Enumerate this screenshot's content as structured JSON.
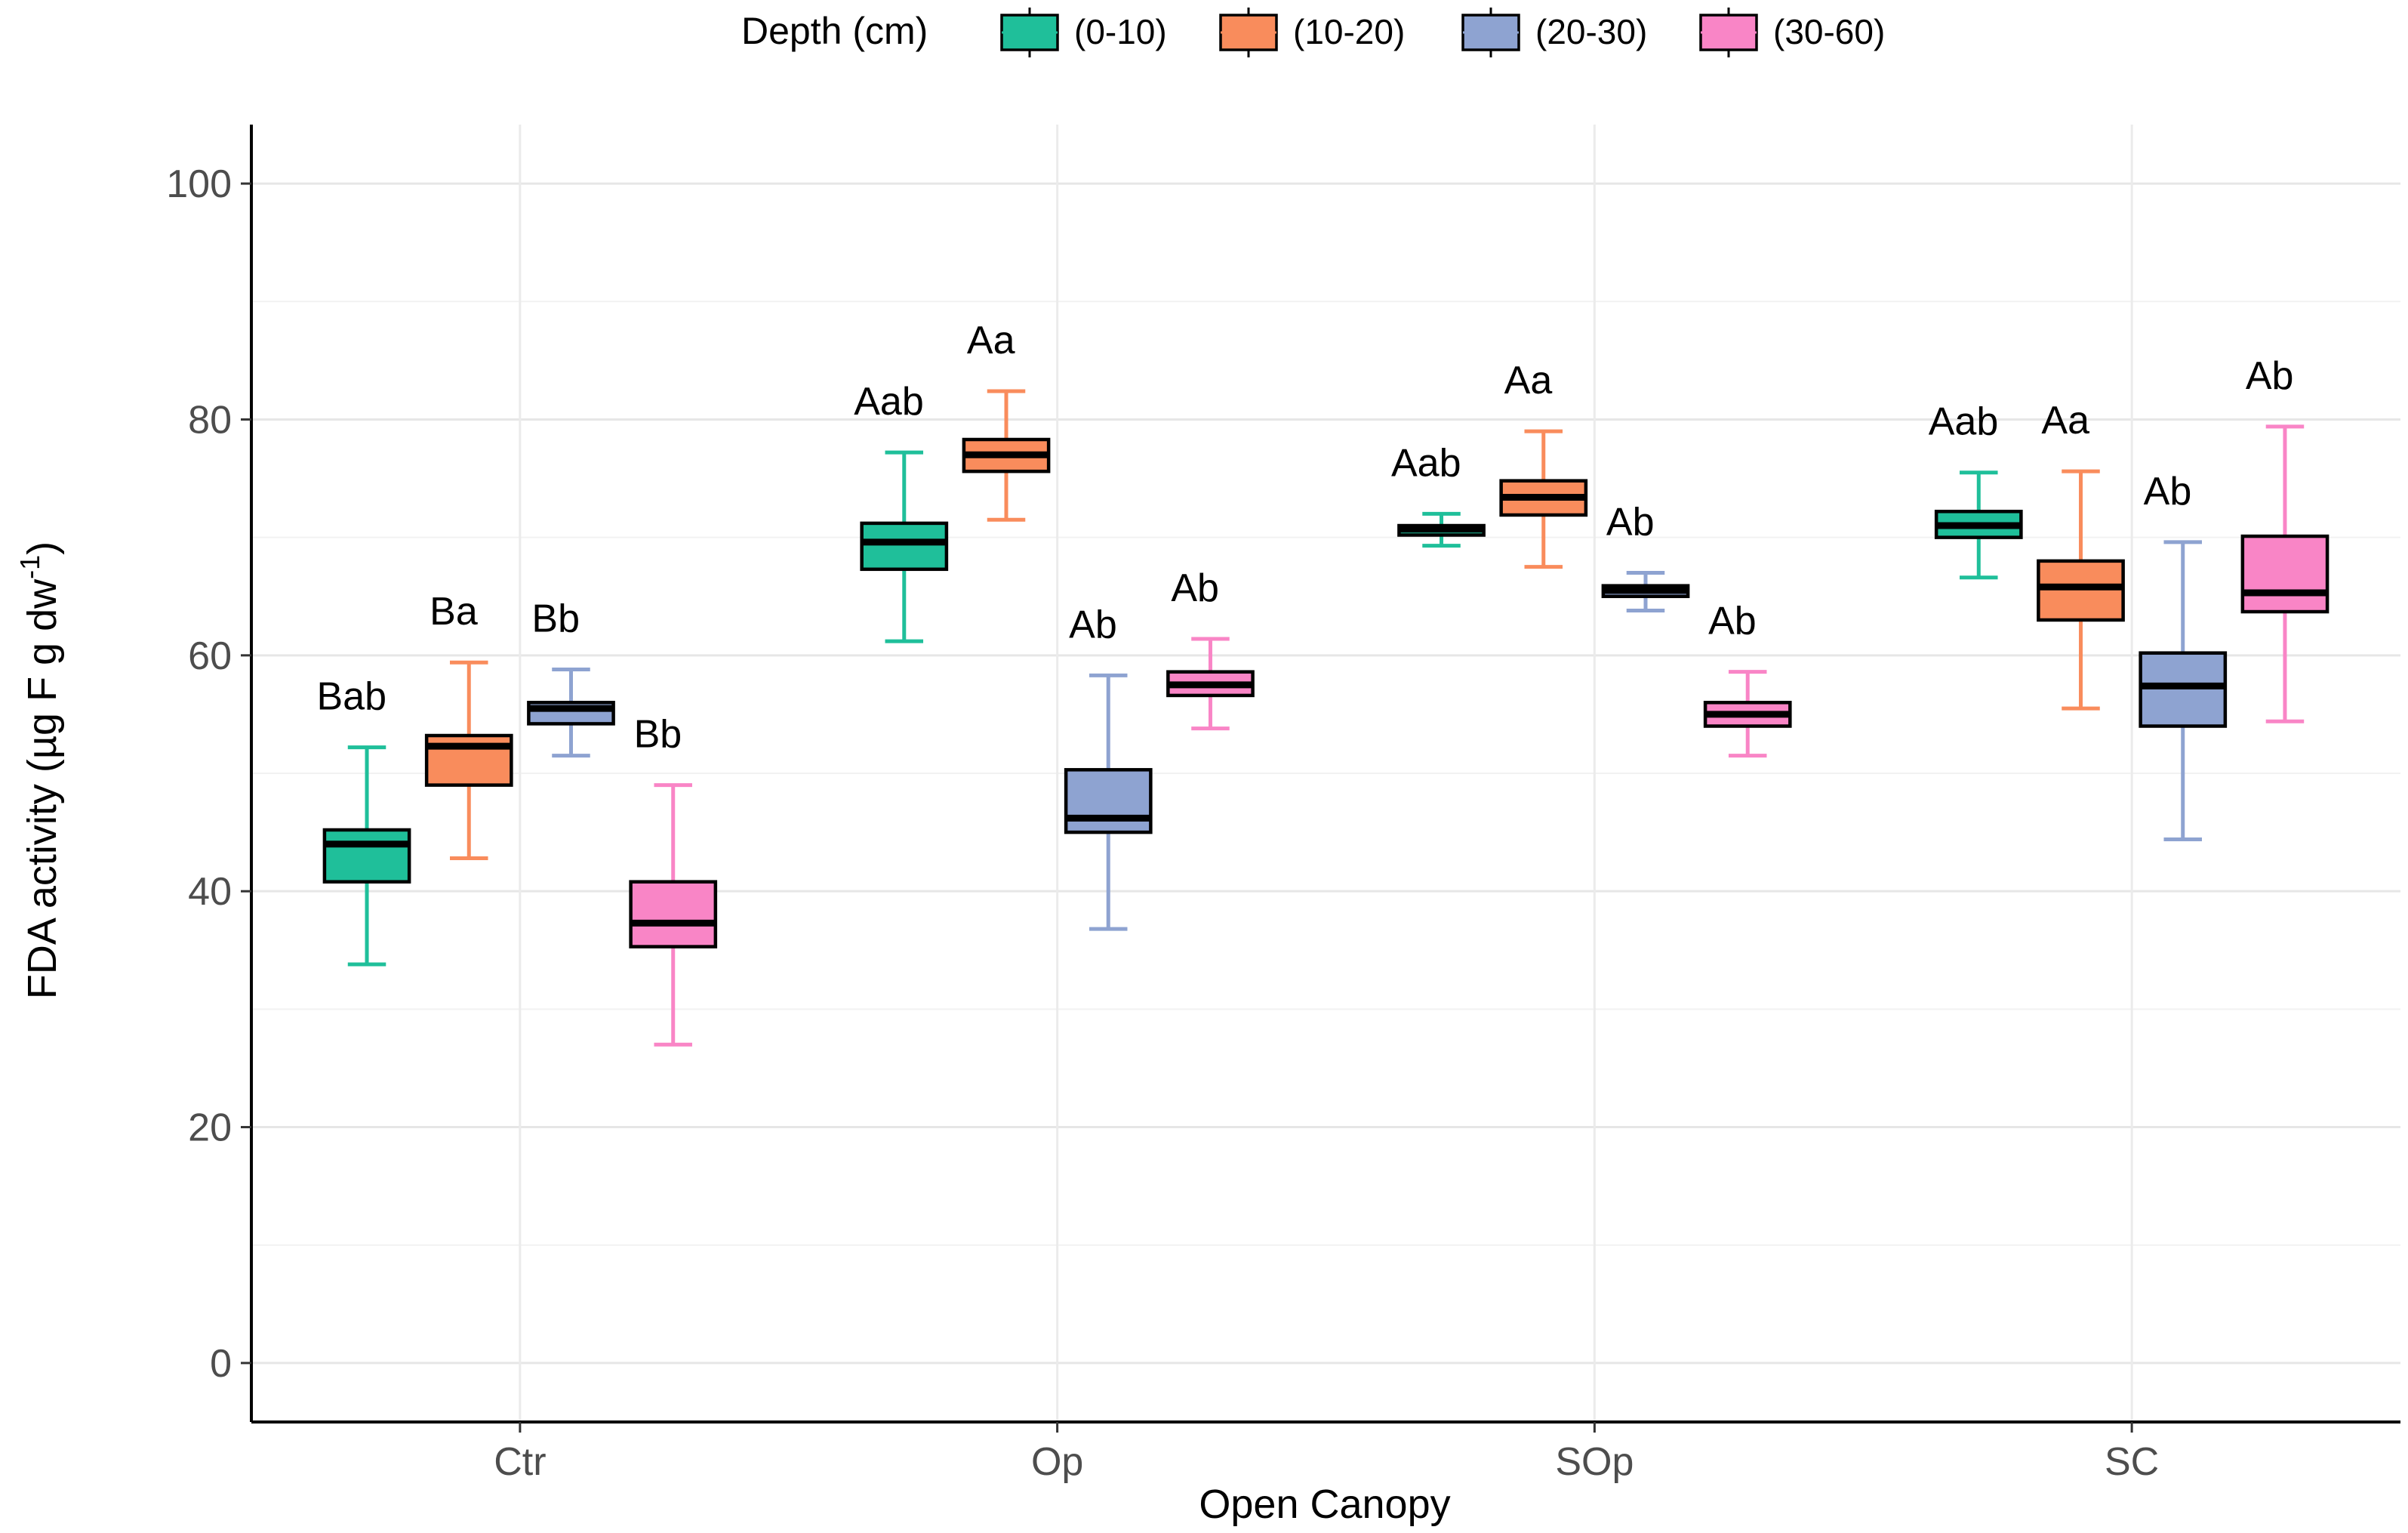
{
  "chart_data": {
    "type": "box",
    "title": "",
    "xlabel": "Open Canopy",
    "ylabel": "FDA activity (µg F g dw",
    "ylabel_superscript": "-1",
    "ylabel_close": ")",
    "ylim": [
      -5,
      105
    ],
    "yticks": [
      0,
      20,
      40,
      60,
      80,
      100
    ],
    "grid": true,
    "legend": {
      "position": "top",
      "title": "Depth (cm)"
    },
    "categories": [
      "Ctr",
      "Op",
      "SOp",
      "SC"
    ],
    "series": [
      {
        "name": "(0-10)",
        "color": "#1fbf9a",
        "boxes": [
          {
            "min": 33.8,
            "q1": 40.8,
            "median": 44.0,
            "q3": 45.2,
            "max": 52.2,
            "label": "Bab"
          },
          {
            "min": 61.2,
            "q1": 67.3,
            "median": 69.6,
            "q3": 71.2,
            "max": 77.2,
            "label": "Aab"
          },
          {
            "min": 69.3,
            "q1": 70.2,
            "median": 70.7,
            "q3": 71.0,
            "max": 72.0,
            "label": "Aab"
          },
          {
            "min": 66.6,
            "q1": 70.0,
            "median": 71.0,
            "q3": 72.2,
            "max": 75.5,
            "label": "Aab"
          }
        ]
      },
      {
        "name": "(10-20)",
        "color": "#f98c5c",
        "boxes": [
          {
            "min": 42.8,
            "q1": 49.0,
            "median": 52.3,
            "q3": 53.2,
            "max": 59.4,
            "label": "Ba"
          },
          {
            "min": 71.5,
            "q1": 75.6,
            "median": 77.0,
            "q3": 78.3,
            "max": 82.4,
            "label": "Aa"
          },
          {
            "min": 67.5,
            "q1": 71.9,
            "median": 73.4,
            "q3": 74.8,
            "max": 79.0,
            "label": "Aa"
          },
          {
            "min": 55.5,
            "q1": 63.0,
            "median": 65.8,
            "q3": 68.0,
            "max": 75.6,
            "label": "Aa"
          }
        ]
      },
      {
        "name": "(20-30)",
        "color": "#8ea3d1",
        "boxes": [
          {
            "min": 51.5,
            "q1": 54.2,
            "median": 55.5,
            "q3": 56.0,
            "max": 58.8,
            "label": "Bb"
          },
          {
            "min": 36.8,
            "q1": 45.0,
            "median": 46.2,
            "q3": 50.3,
            "max": 58.3,
            "label": "Ab"
          },
          {
            "min": 63.8,
            "q1": 65.0,
            "median": 65.5,
            "q3": 65.9,
            "max": 67.0,
            "label": "Ab"
          },
          {
            "min": 44.4,
            "q1": 54.0,
            "median": 57.4,
            "q3": 60.2,
            "max": 69.6,
            "label": "Ab"
          }
        ]
      },
      {
        "name": "(30-60)",
        "color": "#f985c6",
        "boxes": [
          {
            "min": 27.0,
            "q1": 35.3,
            "median": 37.3,
            "q3": 40.8,
            "max": 49.0,
            "label": "Bb"
          },
          {
            "min": 53.8,
            "q1": 56.6,
            "median": 57.5,
            "q3": 58.6,
            "max": 61.4,
            "label": "Ab"
          },
          {
            "min": 51.5,
            "q1": 54.0,
            "median": 55.0,
            "q3": 56.0,
            "max": 58.6,
            "label": "Ab"
          },
          {
            "min": 54.4,
            "q1": 63.7,
            "median": 65.3,
            "q3": 70.1,
            "max": 79.4,
            "label": "Ab"
          }
        ]
      }
    ]
  }
}
